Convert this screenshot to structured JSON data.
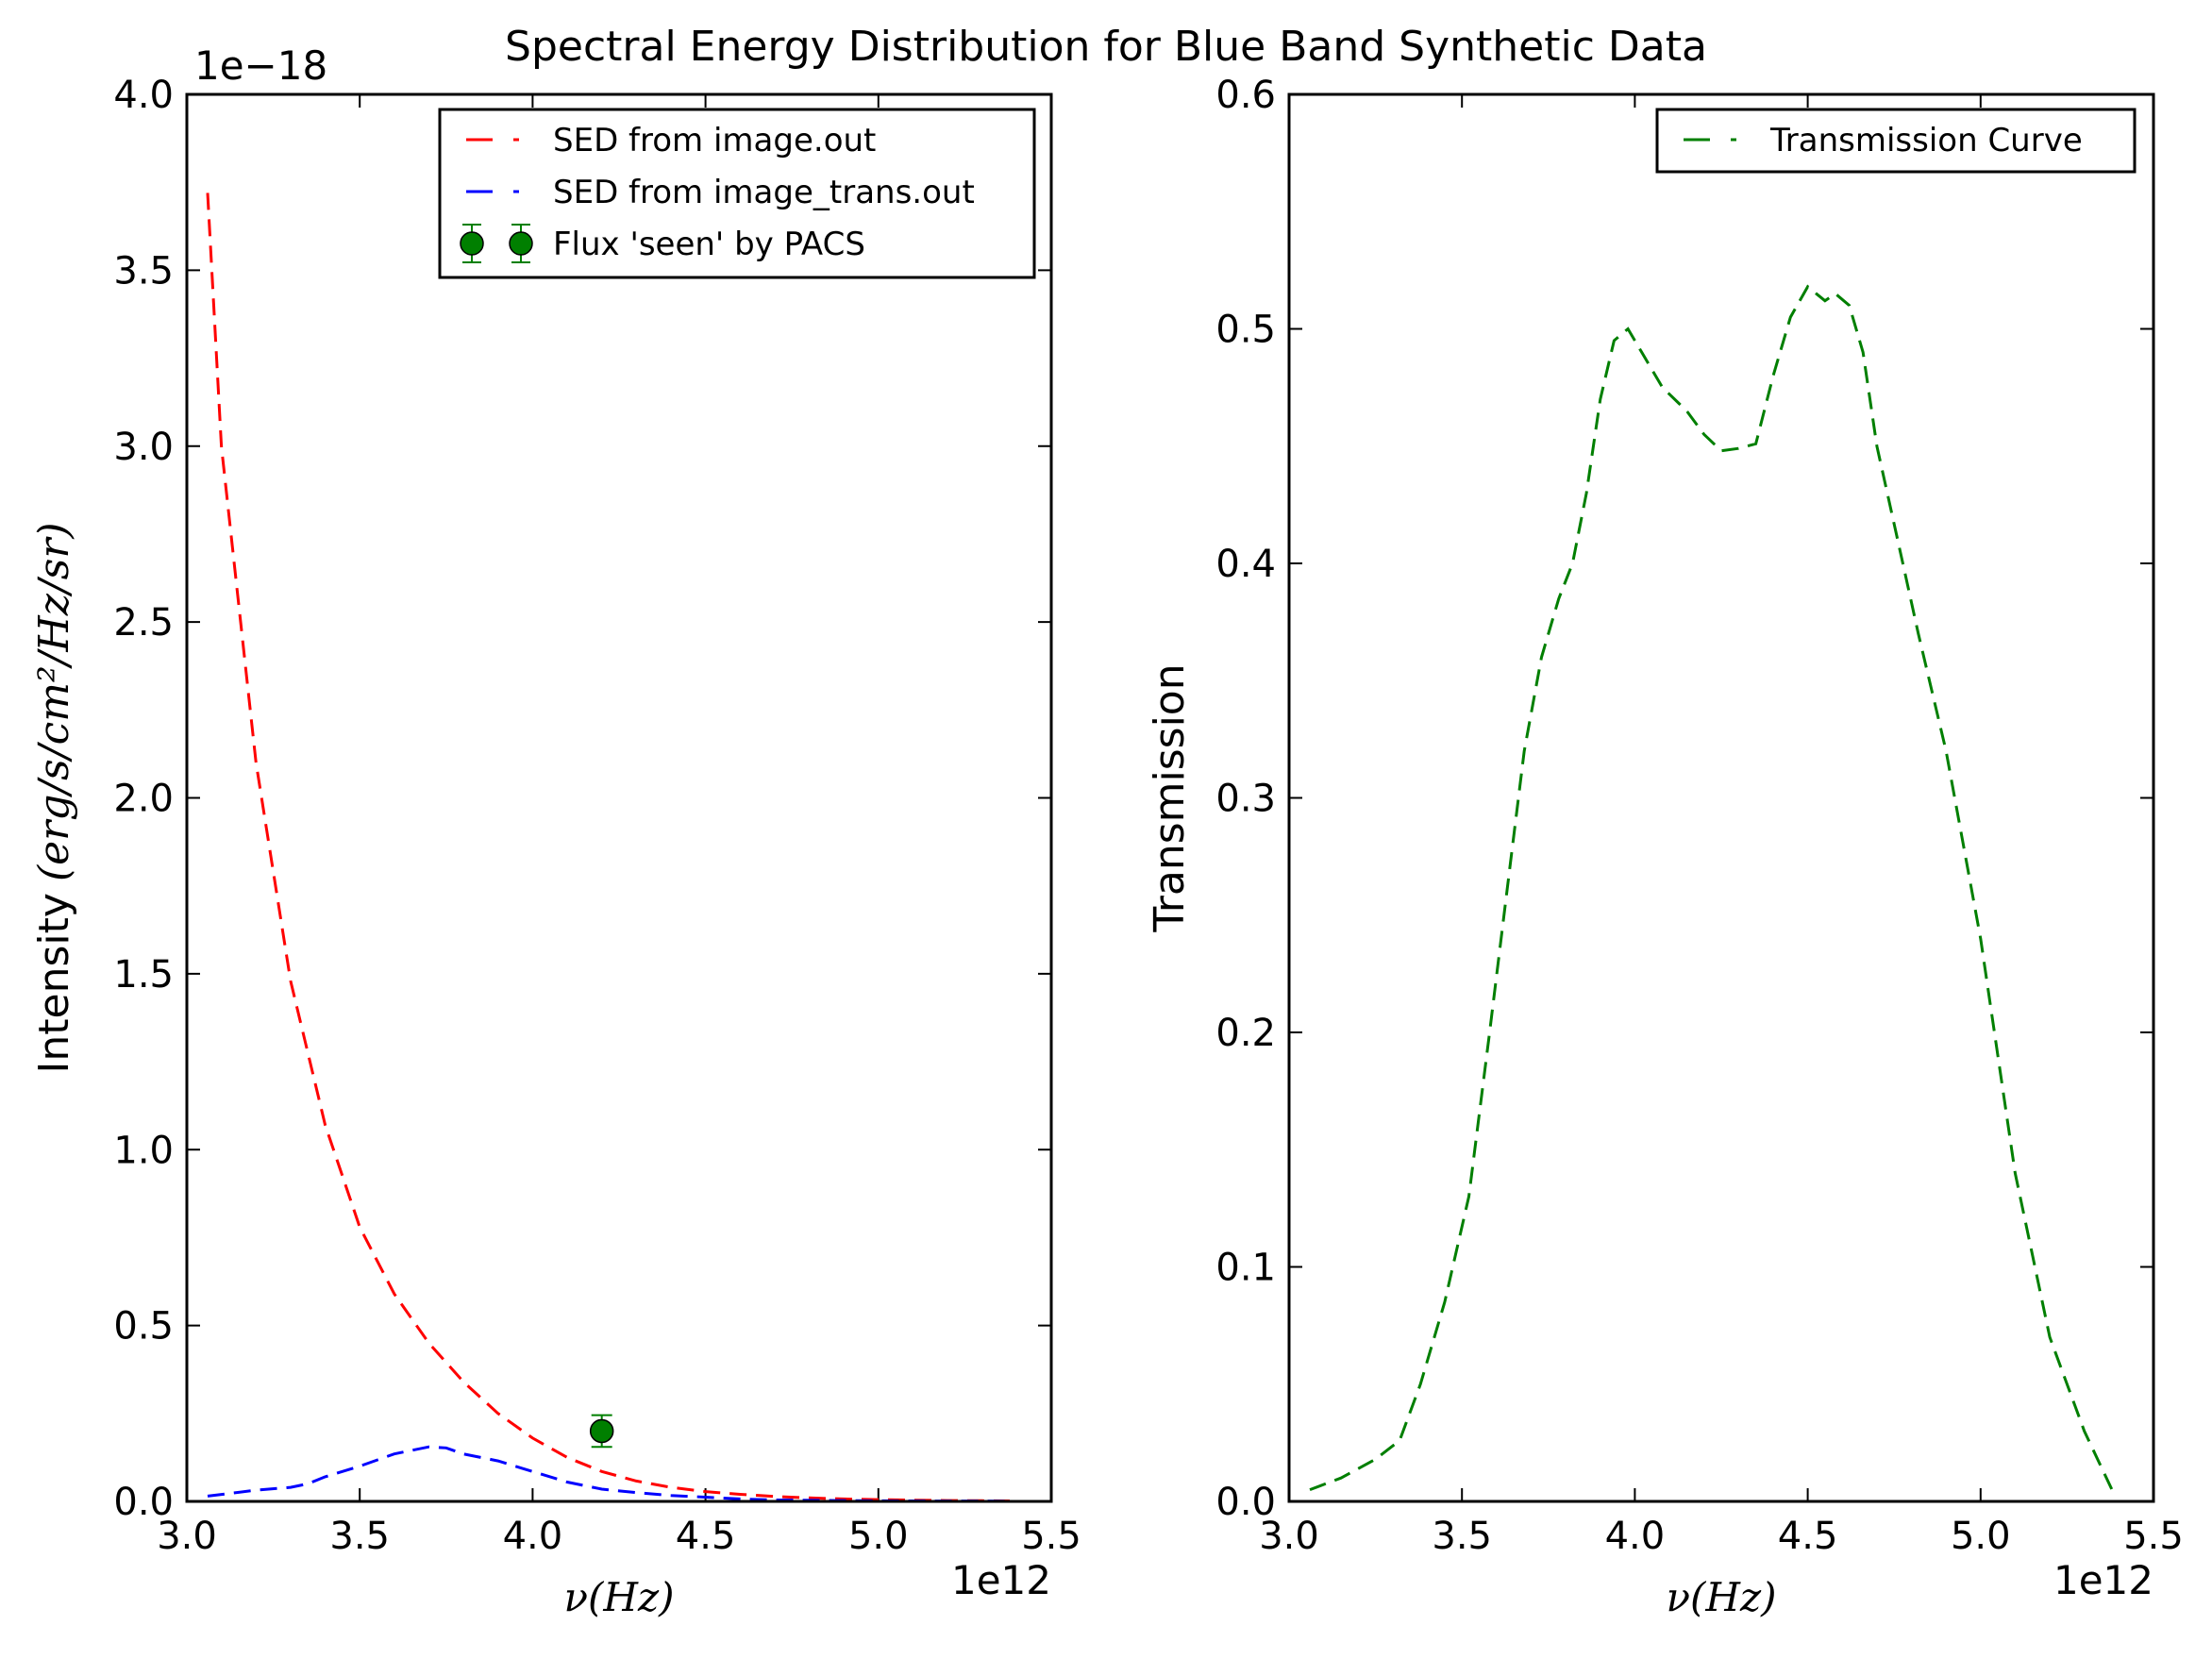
{
  "figure": {
    "title": "Spectral Energy Distribution for Blue Band Synthetic Data"
  },
  "chart_data": [
    {
      "type": "line",
      "xlabel": "ν(Hz)",
      "ylabel_text": "Intensity",
      "ylabel_units": "(erg/s/cm²/Hz/sr)",
      "x_offset_label": "1e12",
      "y_offset_label": "1e−18",
      "xlim": [
        3000000000000.0,
        5500000000000.0
      ],
      "ylim": [
        0,
        4e-18
      ],
      "xticks": [
        "3.0",
        "3.5",
        "4.0",
        "4.5",
        "5.0",
        "5.5"
      ],
      "yticks": [
        "0.0",
        "0.5",
        "1.0",
        "1.5",
        "2.0",
        "2.5",
        "3.0",
        "3.5",
        "4.0"
      ],
      "legend_location": "upper right",
      "series": [
        {
          "name": "SED from image.out",
          "color": "#ff0000",
          "style": "dashed",
          "x": [
            3060000000000.0,
            3100000000000.0,
            3200000000000.0,
            3300000000000.0,
            3400000000000.0,
            3500000000000.0,
            3600000000000.0,
            3700000000000.0,
            3800000000000.0,
            3900000000000.0,
            4000000000000.0,
            4100000000000.0,
            4200000000000.0,
            4300000000000.0,
            4400000000000.0,
            4500000000000.0,
            4600000000000.0,
            4700000000000.0,
            4800000000000.0,
            4900000000000.0,
            5000000000000.0,
            5100000000000.0,
            5200000000000.0,
            5300000000000.0,
            5380000000000.0
          ],
          "y": [
            3.72e-18,
            3e-18,
            2.1e-18,
            1.48e-18,
            1.07e-18,
            7.8e-19,
            5.9e-19,
            4.5e-19,
            3.4e-19,
            2.5e-19,
            1.8e-19,
            1.25e-19,
            8.5e-20,
            5.8e-20,
            4e-20,
            2.8e-20,
            2e-20,
            1.4e-20,
            1e-20,
            7e-21,
            5e-21,
            3.5e-21,
            2.5e-21,
            1.8e-21,
            1.4e-21
          ]
        },
        {
          "name": "SED from image_trans.out",
          "color": "#0000ff",
          "style": "dashed",
          "x": [
            3060000000000.0,
            3200000000000.0,
            3300000000000.0,
            3350000000000.0,
            3400000000000.0,
            3500000000000.0,
            3600000000000.0,
            3700000000000.0,
            3750000000000.0,
            3800000000000.0,
            3900000000000.0,
            4000000000000.0,
            4100000000000.0,
            4200000000000.0,
            4300000000000.0,
            4400000000000.0,
            4500000000000.0,
            4600000000000.0,
            4700000000000.0,
            5000000000000.0,
            5200000000000.0,
            5380000000000.0
          ],
          "y": [
            1.5e-20,
            3.2e-20,
            4e-20,
            5e-20,
            7e-20,
            1e-19,
            1.35e-19,
            1.55e-19,
            1.52e-19,
            1.35e-19,
            1.15e-19,
            8.5e-20,
            5.5e-20,
            3.5e-20,
            2.5e-20,
            1.7e-20,
            1.2e-20,
            7e-21,
            4e-21,
            1.5e-21,
            1e-21,
            8e-22
          ]
        },
        {
          "name": "Flux 'seen' by PACS",
          "color": "#007f00",
          "style": "errorbar-marker",
          "x": [
            4200000000000.0
          ],
          "y": [
            2e-19
          ],
          "yerr": [
            4.5e-20
          ]
        }
      ]
    },
    {
      "type": "line",
      "xlabel": "ν(Hz)",
      "ylabel": "Transmission",
      "x_offset_label": "1e12",
      "xlim": [
        3000000000000.0,
        5500000000000.0
      ],
      "ylim": [
        0,
        0.6
      ],
      "xticks": [
        "3.0",
        "3.5",
        "4.0",
        "4.5",
        "5.0",
        "5.5"
      ],
      "yticks": [
        "0.0",
        "0.1",
        "0.2",
        "0.3",
        "0.4",
        "0.5",
        "0.6"
      ],
      "legend_location": "upper right",
      "series": [
        {
          "name": "Transmission Curve",
          "color": "#007f00",
          "style": "dashed",
          "x": [
            3060000000000.0,
            3150000000000.0,
            3250000000000.0,
            3320000000000.0,
            3380000000000.0,
            3450000000000.0,
            3520000000000.0,
            3580000000000.0,
            3630000000000.0,
            3680000000000.0,
            3730000000000.0,
            3780000000000.0,
            3820000000000.0,
            3860000000000.0,
            3900000000000.0,
            3940000000000.0,
            3980000000000.0,
            4020000000000.0,
            4080000000000.0,
            4150000000000.0,
            4200000000000.0,
            4250000000000.0,
            4300000000000.0,
            4350000000000.0,
            4400000000000.0,
            4450000000000.0,
            4500000000000.0,
            4550000000000.0,
            4580000000000.0,
            4620000000000.0,
            4660000000000.0,
            4700000000000.0,
            4760000000000.0,
            4820000000000.0,
            4900000000000.0,
            5000000000000.0,
            5100000000000.0,
            5200000000000.0,
            5300000000000.0,
            5380000000000.0
          ],
          "y": [
            0.005,
            0.01,
            0.018,
            0.026,
            0.05,
            0.085,
            0.13,
            0.2,
            0.26,
            0.32,
            0.36,
            0.385,
            0.4,
            0.43,
            0.47,
            0.495,
            0.5,
            0.49,
            0.475,
            0.465,
            0.455,
            0.448,
            0.449,
            0.451,
            0.48,
            0.505,
            0.518,
            0.512,
            0.515,
            0.51,
            0.49,
            0.45,
            0.41,
            0.37,
            0.32,
            0.24,
            0.14,
            0.07,
            0.03,
            0.005
          ]
        }
      ]
    }
  ]
}
